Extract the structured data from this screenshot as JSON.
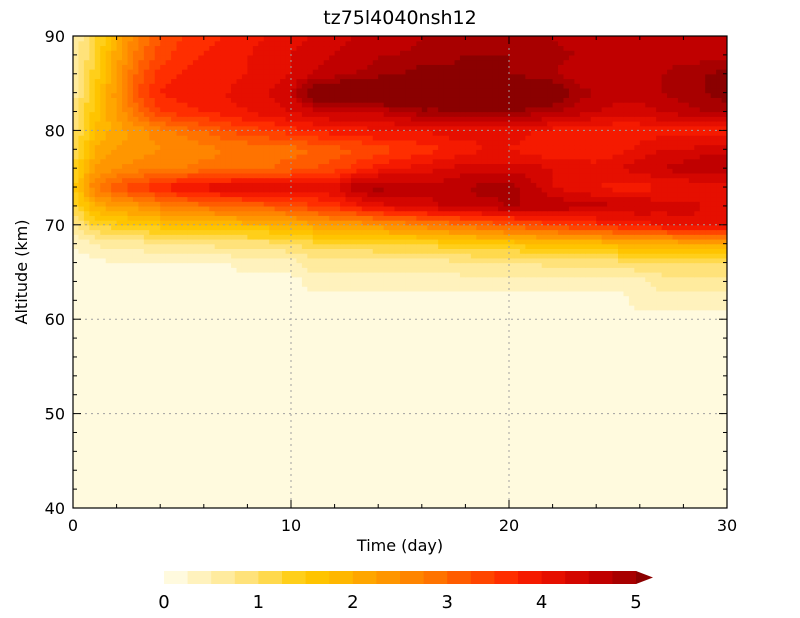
{
  "chart_data": {
    "type": "heatmap",
    "title": "tz75l4040nsh12",
    "xlabel": "Time (day)",
    "ylabel": "Altitude (km)",
    "xlim": [
      0,
      30
    ],
    "ylim": [
      40,
      90
    ],
    "x_ticks": [
      "0",
      "10",
      "20",
      "30"
    ],
    "y_ticks": [
      "40",
      "50",
      "60",
      "70",
      "80",
      "90"
    ],
    "grid": true,
    "colorbar": {
      "min": 0,
      "max": 5,
      "step": 0.2,
      "extend": "max",
      "ticks": [
        "0",
        "1",
        "2",
        "3",
        "4",
        "5"
      ],
      "colors": [
        "#fffade",
        "#fff2bd",
        "#ffeb9e",
        "#ffe27a",
        "#ffd94d",
        "#ffcf1a",
        "#ffc400",
        "#ffb700",
        "#ffa600",
        "#ff9600",
        "#ff8500",
        "#ff7300",
        "#ff5c00",
        "#ff4500",
        "#ff2e00",
        "#f51a00",
        "#e60f00",
        "#d40600",
        "#c00000",
        "#a80000",
        "#8b0000"
      ]
    },
    "grid_x": [
      0,
      1,
      2,
      3,
      4,
      5,
      6,
      7,
      8,
      9,
      10,
      11,
      12,
      13,
      14,
      15,
      16,
      17,
      18,
      19,
      20,
      21,
      22,
      23,
      24,
      25,
      26,
      27,
      28,
      29,
      30
    ],
    "grid_y": [
      40,
      45,
      50,
      55,
      60,
      62,
      64,
      66,
      68,
      70,
      72,
      74,
      76,
      78,
      80,
      82,
      84,
      86,
      88,
      90
    ],
    "z": [
      [
        0.1,
        0.1,
        0.1,
        0.1,
        0.1,
        0.1,
        0.1,
        0.1,
        0.1,
        0.1,
        0.1,
        0.1,
        0.1,
        0.1,
        0.1,
        0.1,
        0.1,
        0.1,
        0.1,
        0.1,
        0.1,
        0.1,
        0.1,
        0.1,
        0.1,
        0.1,
        0.1,
        0.1,
        0.1,
        0.1,
        0.1
      ],
      [
        0.1,
        0.1,
        0.1,
        0.1,
        0.1,
        0.1,
        0.1,
        0.1,
        0.1,
        0.1,
        0.1,
        0.1,
        0.1,
        0.1,
        0.1,
        0.1,
        0.1,
        0.1,
        0.1,
        0.1,
        0.1,
        0.1,
        0.1,
        0.1,
        0.1,
        0.1,
        0.1,
        0.1,
        0.1,
        0.1,
        0.1
      ],
      [
        0.1,
        0.1,
        0.1,
        0.1,
        0.1,
        0.1,
        0.1,
        0.1,
        0.1,
        0.1,
        0.1,
        0.1,
        0.1,
        0.1,
        0.1,
        0.1,
        0.1,
        0.1,
        0.1,
        0.1,
        0.1,
        0.1,
        0.1,
        0.1,
        0.1,
        0.1,
        0.1,
        0.1,
        0.1,
        0.1,
        0.1
      ],
      [
        0.1,
        0.1,
        0.1,
        0.1,
        0.1,
        0.1,
        0.1,
        0.1,
        0.1,
        0.1,
        0.1,
        0.1,
        0.1,
        0.1,
        0.1,
        0.1,
        0.1,
        0.1,
        0.1,
        0.1,
        0.1,
        0.1,
        0.1,
        0.1,
        0.1,
        0.1,
        0.1,
        0.1,
        0.1,
        0.1,
        0.1
      ],
      [
        0.1,
        0.1,
        0.1,
        0.1,
        0.1,
        0.1,
        0.1,
        0.1,
        0.1,
        0.1,
        0.1,
        0.1,
        0.1,
        0.1,
        0.1,
        0.1,
        0.1,
        0.1,
        0.1,
        0.1,
        0.1,
        0.1,
        0.1,
        0.1,
        0.1,
        0.1,
        0.1,
        0.1,
        0.1,
        0.1,
        0.1
      ],
      [
        0.1,
        0.1,
        0.1,
        0.1,
        0.1,
        0.1,
        0.1,
        0.1,
        0.1,
        0.1,
        0.1,
        0.1,
        0.1,
        0.1,
        0.1,
        0.1,
        0.1,
        0.1,
        0.1,
        0.1,
        0.1,
        0.1,
        0.1,
        0.1,
        0.1,
        0.1,
        0.3,
        0.3,
        0.3,
        0.3,
        0.3
      ],
      [
        0.1,
        0.1,
        0.1,
        0.1,
        0.1,
        0.1,
        0.1,
        0.1,
        0.1,
        0.1,
        0.1,
        0.3,
        0.3,
        0.3,
        0.3,
        0.3,
        0.3,
        0.3,
        0.3,
        0.3,
        0.3,
        0.3,
        0.3,
        0.3,
        0.3,
        0.3,
        0.3,
        0.5,
        0.5,
        0.5,
        0.5
      ],
      [
        0.1,
        0.1,
        0.2,
        0.2,
        0.2,
        0.2,
        0.2,
        0.2,
        0.3,
        0.3,
        0.3,
        0.5,
        0.5,
        0.5,
        0.5,
        0.5,
        0.5,
        0.5,
        0.6,
        0.6,
        0.6,
        0.6,
        0.7,
        0.7,
        0.7,
        0.7,
        0.8,
        0.8,
        0.8,
        0.8,
        0.8
      ],
      [
        0.2,
        0.4,
        0.5,
        0.5,
        0.6,
        0.6,
        0.6,
        0.7,
        0.7,
        0.7,
        0.8,
        0.9,
        0.9,
        0.9,
        1.0,
        1.0,
        1.0,
        1.1,
        1.1,
        1.2,
        1.2,
        1.3,
        1.3,
        1.4,
        1.4,
        1.5,
        1.5,
        1.5,
        1.6,
        1.6,
        1.6
      ],
      [
        0.5,
        1.0,
        1.1,
        1.2,
        1.3,
        1.3,
        1.4,
        1.4,
        1.5,
        1.5,
        1.6,
        1.7,
        1.8,
        1.8,
        1.9,
        2.0,
        2.1,
        2.2,
        2.3,
        2.4,
        2.5,
        2.6,
        2.7,
        2.8,
        2.9,
        3.0,
        3.1,
        3.2,
        3.3,
        3.3,
        3.3
      ],
      [
        0.9,
        1.6,
        1.8,
        1.9,
        2.1,
        2.2,
        2.3,
        2.4,
        2.4,
        2.5,
        2.6,
        2.8,
        2.9,
        3.1,
        3.3,
        3.4,
        3.5,
        3.6,
        3.7,
        3.7,
        3.8,
        3.8,
        3.8,
        3.7,
        3.7,
        3.6,
        3.6,
        3.5,
        3.5,
        3.4,
        3.4
      ],
      [
        1.1,
        2.2,
        2.6,
        2.8,
        3.0,
        3.2,
        3.3,
        3.4,
        3.5,
        3.4,
        3.3,
        3.3,
        3.4,
        3.8,
        3.9,
        3.8,
        3.7,
        3.7,
        3.8,
        3.9,
        3.9,
        3.7,
        3.4,
        3.3,
        3.2,
        3.1,
        3.1,
        3.2,
        3.2,
        3.2,
        3.2
      ],
      [
        1.0,
        1.8,
        2.0,
        2.1,
        2.2,
        2.2,
        2.3,
        2.3,
        2.3,
        2.4,
        2.5,
        2.6,
        2.7,
        2.9,
        3.1,
        3.2,
        3.3,
        3.4,
        3.5,
        3.5,
        3.5,
        3.5,
        3.4,
        3.4,
        3.3,
        3.4,
        3.5,
        3.6,
        3.7,
        3.8,
        3.8
      ],
      [
        0.8,
        1.6,
        1.8,
        1.9,
        2.0,
        2.0,
        2.1,
        2.2,
        2.2,
        2.3,
        2.3,
        2.4,
        2.5,
        2.6,
        2.7,
        2.8,
        2.9,
        3.0,
        3.1,
        3.2,
        3.2,
        3.1,
        3.0,
        3.0,
        3.0,
        3.1,
        3.3,
        3.4,
        3.4,
        3.5,
        3.5
      ],
      [
        0.7,
        1.4,
        1.7,
        1.9,
        2.1,
        2.3,
        2.4,
        2.6,
        2.7,
        2.8,
        2.9,
        3.0,
        3.1,
        3.1,
        3.2,
        3.2,
        3.2,
        3.3,
        3.3,
        3.3,
        3.3,
        3.2,
        3.1,
        3.1,
        3.0,
        3.0,
        3.0,
        3.1,
        3.1,
        3.1,
        3.1
      ],
      [
        0.6,
        1.3,
        1.8,
        2.4,
        2.8,
        2.9,
        3.0,
        3.1,
        3.2,
        3.3,
        3.4,
        3.5,
        3.6,
        3.6,
        3.6,
        3.8,
        3.9,
        3.9,
        4.0,
        4.0,
        4.0,
        3.9,
        3.8,
        3.7,
        3.6,
        3.5,
        3.5,
        3.6,
        3.7,
        3.8,
        3.9
      ],
      [
        0.5,
        1.2,
        1.9,
        2.6,
        3.0,
        3.1,
        3.2,
        3.2,
        3.3,
        3.4,
        3.6,
        4.3,
        4.4,
        4.5,
        4.6,
        4.7,
        4.7,
        4.7,
        4.7,
        4.6,
        4.6,
        4.5,
        4.3,
        3.9,
        3.8,
        3.7,
        3.7,
        3.8,
        3.9,
        4.0,
        4.1
      ],
      [
        0.5,
        1.1,
        1.8,
        2.5,
        2.9,
        3.0,
        3.1,
        3.1,
        3.2,
        3.3,
        3.4,
        3.6,
        3.7,
        3.8,
        3.9,
        4.0,
        4.1,
        4.1,
        4.1,
        4.0,
        4.0,
        3.9,
        3.8,
        3.7,
        3.6,
        3.6,
        3.7,
        3.8,
        3.9,
        4.0,
        4.1
      ],
      [
        0.4,
        1.0,
        1.7,
        2.3,
        2.7,
        2.9,
        3.0,
        3.1,
        3.2,
        3.3,
        3.4,
        3.5,
        3.6,
        3.7,
        3.8,
        3.8,
        3.9,
        3.9,
        4.0,
        4.0,
        4.0,
        3.9,
        3.9,
        3.8,
        3.8,
        3.7,
        3.7,
        3.7,
        3.7,
        3.7,
        3.7
      ],
      [
        0.4,
        0.9,
        1.6,
        2.2,
        2.6,
        2.8,
        2.9,
        3.0,
        3.1,
        3.2,
        3.3,
        3.4,
        3.5,
        3.6,
        3.7,
        3.7,
        3.8,
        3.8,
        3.9,
        3.9,
        3.9,
        3.8,
        3.8,
        3.7,
        3.7,
        3.6,
        3.6,
        3.6,
        3.6,
        3.6,
        3.6
      ]
    ]
  }
}
